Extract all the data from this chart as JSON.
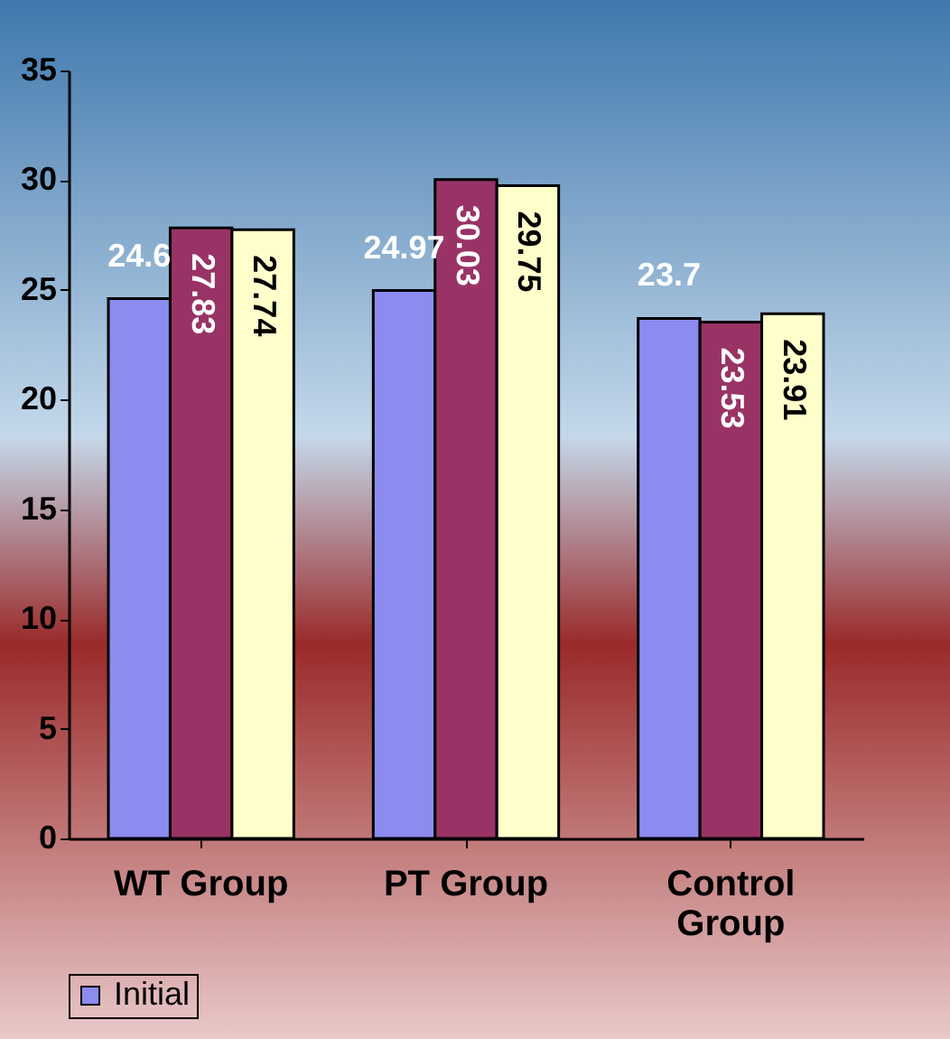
{
  "chart_data": {
    "type": "bar",
    "categories": [
      "WT Group",
      "PT Group",
      "Control Group"
    ],
    "series": [
      {
        "name": "Initial",
        "color": "#8c8cf0",
        "values": [
          24.6,
          24.97,
          23.7
        ]
      },
      {
        "color": "#993366",
        "values": [
          27.83,
          30.03,
          23.53
        ]
      },
      {
        "color": "#ffffcc",
        "values": [
          27.74,
          29.75,
          23.91
        ]
      }
    ],
    "ylim": [
      0,
      35
    ],
    "yticks": [
      0,
      5,
      10,
      15,
      20,
      25,
      30,
      35
    ],
    "legend": "bottom",
    "data_labels": true
  }
}
